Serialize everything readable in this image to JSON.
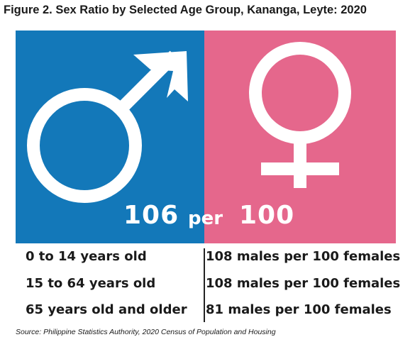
{
  "title": "Figure 2. Sex Ratio by Selected Age Group, Kananga, Leyte: 2020",
  "colors": {
    "male_panel": "#1378b9",
    "female_panel": "#e5678c",
    "symbol": "#ffffff",
    "text": "#1a1a1a"
  },
  "icons": {
    "male": "male-symbol-icon",
    "female": "female-symbol-icon"
  },
  "headline": {
    "males": "106",
    "per": "per",
    "females": "100"
  },
  "source": "Source: Philippine Statistics Authority, 2020 Census of Population and Housing",
  "chart_data": {
    "type": "table",
    "title": "Figure 2. Sex Ratio by Selected Age Group, Kananga, Leyte: 2020",
    "overall_sex_ratio": 106,
    "rows": [
      {
        "age_group": "0 to 14 years old",
        "label": "108 males per 100 females",
        "males_per_100_females": 108
      },
      {
        "age_group": "15 to 64 years old",
        "label": "108 males per 100 females",
        "males_per_100_females": 108
      },
      {
        "age_group": "65 years old and older",
        "label": "81 males per 100 females",
        "males_per_100_females": 81
      }
    ]
  }
}
